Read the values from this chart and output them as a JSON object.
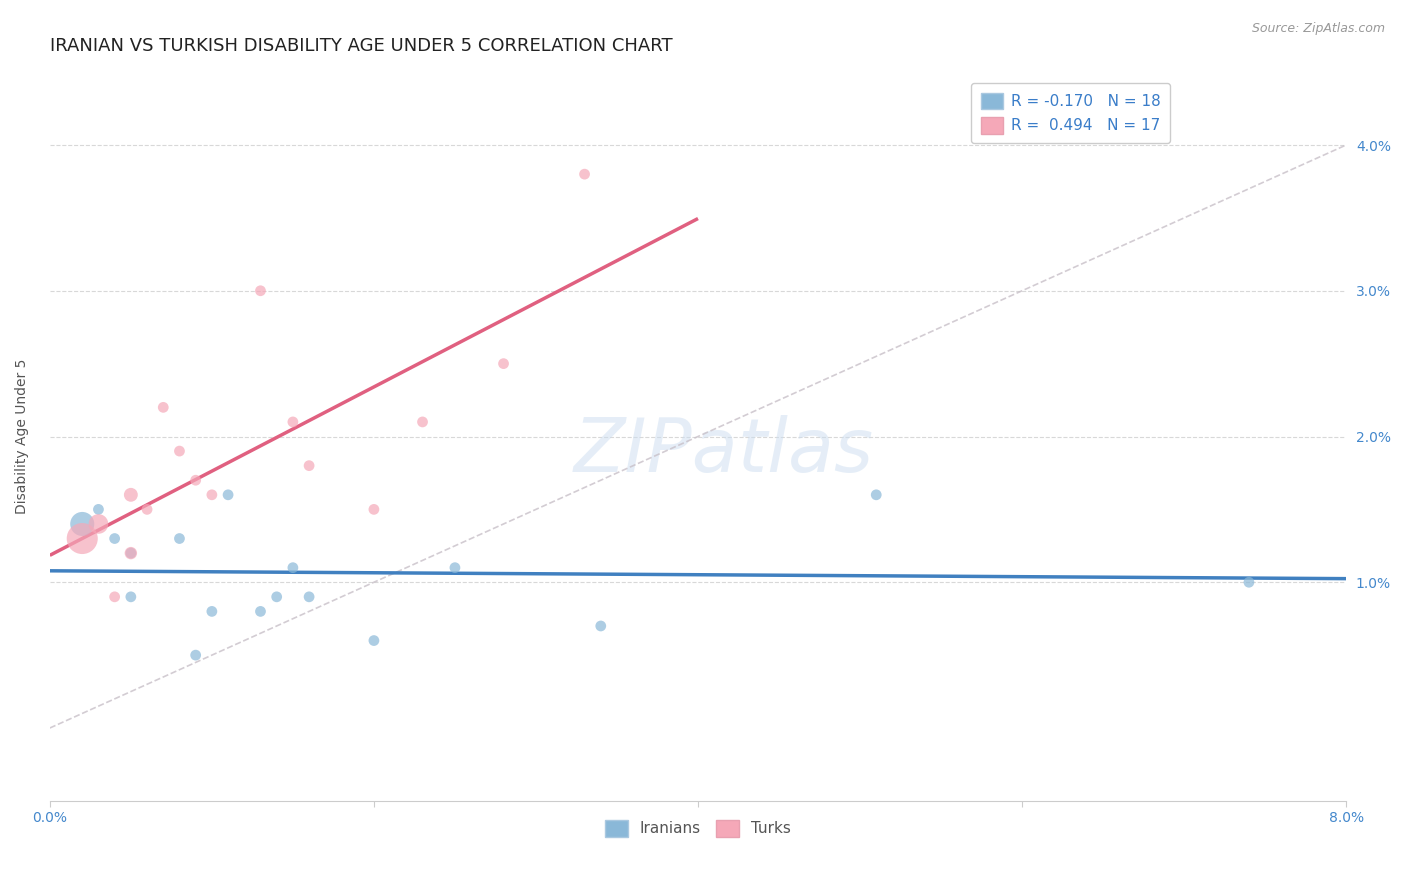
{
  "title": "IRANIAN VS TURKISH DISABILITY AGE UNDER 5 CORRELATION CHART",
  "source": "Source: ZipAtlas.com",
  "ylabel": "Disability Age Under 5",
  "ylim": [
    -0.005,
    0.045
  ],
  "xlim": [
    0.0,
    0.08
  ],
  "yticks": [
    0.01,
    0.02,
    0.03,
    0.04
  ],
  "ytick_labels": [
    "1.0%",
    "2.0%",
    "3.0%",
    "4.0%"
  ],
  "xtick_labels": [
    "0.0%",
    "",
    "",
    "",
    "8.0%"
  ],
  "legend_R_iranian": "-0.170",
  "legend_N_iranian": "18",
  "legend_R_turkish": "0.494",
  "legend_N_turkish": "17",
  "iranian_color": "#8ab8d8",
  "turkish_color": "#f5a8b8",
  "iranian_line_color": "#4080c0",
  "turkish_line_color": "#e06080",
  "diagonal_color": "#c8c0c8",
  "background_color": "#ffffff",
  "grid_color": "#d8d8d8",
  "iranians_x": [
    0.002,
    0.003,
    0.004,
    0.005,
    0.005,
    0.008,
    0.009,
    0.01,
    0.011,
    0.013,
    0.014,
    0.015,
    0.016,
    0.02,
    0.025,
    0.034,
    0.051,
    0.074
  ],
  "iranians_y": [
    0.014,
    0.015,
    0.013,
    0.009,
    0.012,
    0.013,
    0.005,
    0.008,
    0.016,
    0.008,
    0.009,
    0.011,
    0.009,
    0.006,
    0.011,
    0.007,
    0.016,
    0.01
  ],
  "iranians_large": [
    0,
    1
  ],
  "turks_x": [
    0.002,
    0.003,
    0.004,
    0.005,
    0.005,
    0.006,
    0.007,
    0.008,
    0.009,
    0.01,
    0.013,
    0.015,
    0.016,
    0.02,
    0.023,
    0.028,
    0.033
  ],
  "turks_y": [
    0.013,
    0.014,
    0.009,
    0.016,
    0.012,
    0.015,
    0.022,
    0.019,
    0.017,
    0.016,
    0.03,
    0.021,
    0.018,
    0.015,
    0.021,
    0.025,
    0.038
  ],
  "turks_large": [
    0,
    1,
    2
  ],
  "title_fontsize": 13,
  "axis_label_fontsize": 10,
  "tick_fontsize": 10,
  "source_fontsize": 9,
  "legend_fontsize": 11
}
